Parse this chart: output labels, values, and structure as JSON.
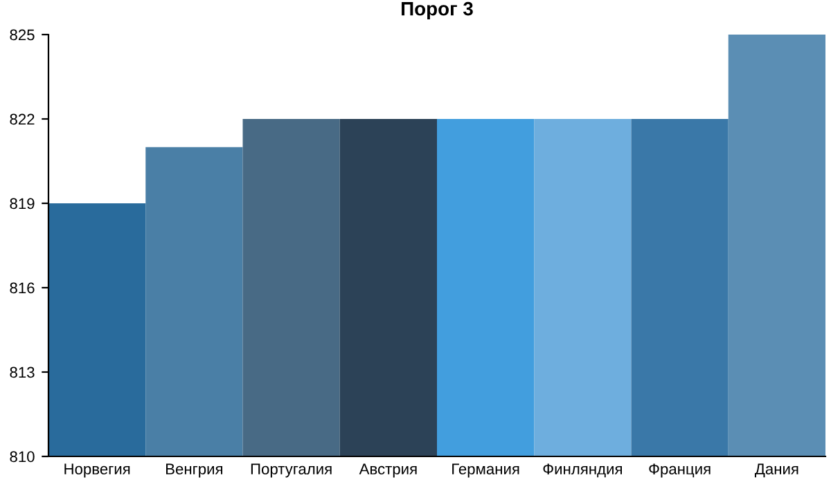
{
  "chart_data": {
    "type": "bar",
    "title": "Порог 3",
    "categories": [
      "Норвегия",
      "Венгрия",
      "Португалия",
      "Австрия",
      "Германия",
      "Финляндия",
      "Франция",
      "Дания"
    ],
    "values": [
      819,
      821,
      822,
      822,
      822,
      822,
      822,
      825
    ],
    "colors": [
      "#296b9c",
      "#4a7fa6",
      "#486a85",
      "#2c4257",
      "#429ede",
      "#6eaede",
      "#3a78a8",
      "#5b8eb4"
    ],
    "ylim": [
      810,
      825
    ],
    "yticks": [
      810,
      813,
      816,
      819,
      822,
      825
    ],
    "grid": false,
    "legend": false
  }
}
